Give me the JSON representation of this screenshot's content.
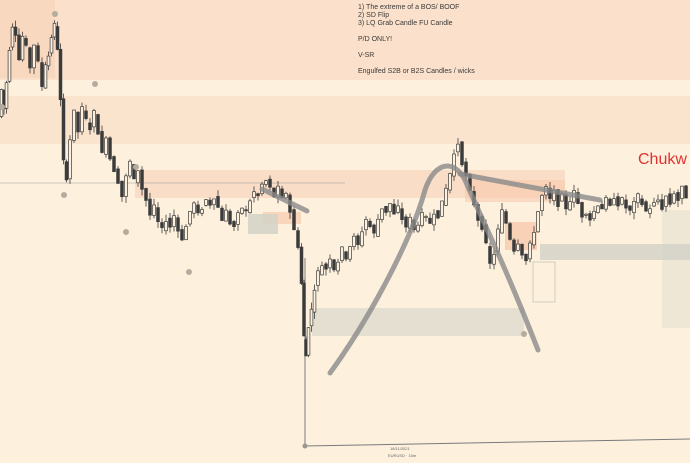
{
  "notes": {
    "line1": "1) The extreme of a BOS/ BOOF",
    "line2": "2) SD Flip",
    "line3": "3) LQ Grab Candle FU Candle",
    "line4": "P/D ONLY!",
    "line5": "V-SR",
    "line6": "Engulfed S2B or B2S Candles / wicks"
  },
  "watermark": "Chukw",
  "axis": {
    "date_label": "18/11/2021",
    "symbol_label": "EURUSD · 15m"
  },
  "colors": {
    "background": "#fdf1de",
    "supply_zone": "#f6c9ad",
    "demand_zone": "#d5d3c8",
    "candle": "#3b3b3b",
    "drawing": "#8a8a8a",
    "swing_dot": "#b5aca0",
    "watermark": "#e0312f"
  },
  "chart_data": {
    "type": "candlestick",
    "title": "",
    "xlabel": "",
    "ylabel": "",
    "ylim": [
      0,
      100
    ],
    "path": [
      [
        0,
        72
      ],
      [
        3,
        79
      ],
      [
        5,
        74
      ],
      [
        8,
        81
      ],
      [
        11,
        90
      ],
      [
        14,
        96
      ],
      [
        17,
        94
      ],
      [
        21,
        87
      ],
      [
        24,
        93
      ],
      [
        28,
        90
      ],
      [
        32,
        85
      ],
      [
        36,
        91
      ],
      [
        40,
        86
      ],
      [
        44,
        80
      ],
      [
        47,
        86
      ],
      [
        50,
        88
      ],
      [
        53,
        93
      ],
      [
        56,
        96
      ],
      [
        59,
        90
      ],
      [
        62,
        76
      ],
      [
        65,
        60
      ],
      [
        68,
        56
      ],
      [
        72,
        66
      ],
      [
        76,
        73
      ],
      [
        80,
        68
      ],
      [
        84,
        74
      ],
      [
        88,
        71
      ],
      [
        92,
        69
      ],
      [
        96,
        73
      ],
      [
        100,
        68
      ],
      [
        104,
        62
      ],
      [
        108,
        67
      ],
      [
        112,
        61
      ],
      [
        116,
        58
      ],
      [
        120,
        55
      ],
      [
        124,
        51
      ],
      [
        128,
        56
      ],
      [
        132,
        60
      ],
      [
        136,
        55
      ],
      [
        140,
        58
      ],
      [
        144,
        53
      ],
      [
        148,
        50
      ],
      [
        152,
        46
      ],
      [
        156,
        48
      ],
      [
        160,
        44
      ],
      [
        164,
        42
      ],
      [
        168,
        45
      ],
      [
        172,
        43
      ],
      [
        176,
        46
      ],
      [
        180,
        42
      ],
      [
        184,
        40
      ],
      [
        188,
        43
      ],
      [
        192,
        47
      ],
      [
        196,
        49
      ],
      [
        200,
        46
      ],
      [
        204,
        48
      ],
      [
        208,
        50
      ],
      [
        212,
        49
      ],
      [
        216,
        51
      ],
      [
        220,
        48
      ],
      [
        224,
        45
      ],
      [
        228,
        47
      ],
      [
        232,
        44
      ],
      [
        236,
        43
      ],
      [
        240,
        46
      ],
      [
        244,
        48
      ],
      [
        248,
        47
      ],
      [
        252,
        50
      ],
      [
        256,
        52
      ],
      [
        260,
        51
      ],
      [
        264,
        54
      ],
      [
        268,
        55
      ],
      [
        272,
        53
      ],
      [
        276,
        51
      ],
      [
        280,
        53
      ],
      [
        284,
        50
      ],
      [
        288,
        52
      ],
      [
        292,
        47
      ],
      [
        296,
        42
      ],
      [
        300,
        38
      ],
      [
        303,
        28
      ],
      [
        305,
        14
      ],
      [
        307,
        9
      ],
      [
        310,
        17
      ],
      [
        313,
        21
      ],
      [
        316,
        27
      ],
      [
        320,
        31
      ],
      [
        324,
        33
      ],
      [
        328,
        32
      ],
      [
        332,
        35
      ],
      [
        336,
        32
      ],
      [
        340,
        34
      ],
      [
        344,
        37
      ],
      [
        348,
        35
      ],
      [
        352,
        38
      ],
      [
        356,
        40
      ],
      [
        360,
        38
      ],
      [
        364,
        42
      ],
      [
        368,
        45
      ],
      [
        372,
        43
      ],
      [
        376,
        41
      ],
      [
        380,
        45
      ],
      [
        384,
        48
      ],
      [
        388,
        47
      ],
      [
        392,
        49
      ],
      [
        396,
        46
      ],
      [
        400,
        48
      ],
      [
        404,
        45
      ],
      [
        408,
        43
      ],
      [
        412,
        45
      ],
      [
        416,
        42
      ],
      [
        420,
        44
      ],
      [
        424,
        46
      ],
      [
        428,
        45
      ],
      [
        432,
        44
      ],
      [
        436,
        47
      ],
      [
        440,
        46
      ],
      [
        444,
        49
      ],
      [
        448,
        53
      ],
      [
        452,
        57
      ],
      [
        456,
        62
      ],
      [
        460,
        65
      ],
      [
        464,
        60
      ],
      [
        468,
        56
      ],
      [
        472,
        52
      ],
      [
        476,
        49
      ],
      [
        480,
        45
      ],
      [
        484,
        43
      ],
      [
        488,
        38
      ],
      [
        492,
        33
      ],
      [
        496,
        36
      ],
      [
        500,
        42
      ],
      [
        504,
        47
      ],
      [
        508,
        44
      ],
      [
        512,
        40
      ],
      [
        516,
        37
      ],
      [
        520,
        39
      ],
      [
        524,
        36
      ],
      [
        528,
        34
      ],
      [
        532,
        38
      ],
      [
        536,
        42
      ],
      [
        540,
        47
      ],
      [
        544,
        51
      ],
      [
        548,
        53
      ],
      [
        552,
        50
      ],
      [
        556,
        52
      ],
      [
        560,
        49
      ],
      [
        564,
        51
      ],
      [
        568,
        48
      ],
      [
        572,
        50
      ],
      [
        576,
        52
      ],
      [
        580,
        49
      ],
      [
        584,
        46
      ],
      [
        588,
        47
      ],
      [
        592,
        45
      ],
      [
        596,
        47
      ],
      [
        600,
        49
      ],
      [
        604,
        48
      ],
      [
        608,
        50
      ],
      [
        612,
        48
      ],
      [
        616,
        51
      ],
      [
        620,
        49
      ],
      [
        624,
        50
      ],
      [
        628,
        48
      ],
      [
        632,
        47
      ],
      [
        636,
        49
      ],
      [
        640,
        51
      ],
      [
        644,
        49
      ],
      [
        648,
        47
      ],
      [
        652,
        48
      ],
      [
        656,
        49
      ],
      [
        660,
        50
      ],
      [
        664,
        48
      ],
      [
        668,
        51
      ],
      [
        672,
        49
      ],
      [
        676,
        52
      ],
      [
        680,
        50
      ],
      [
        684,
        53
      ],
      [
        688,
        51
      ]
    ]
  }
}
